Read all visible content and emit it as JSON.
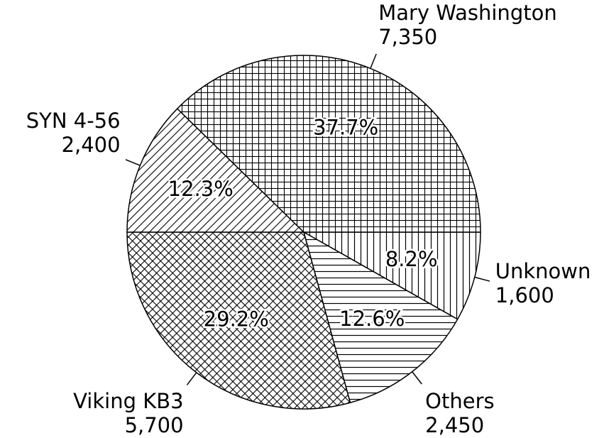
{
  "chart_data": {
    "type": "pie",
    "categories": [
      "Unknown",
      "Others",
      "Viking KB3",
      "SYN 4-56",
      "Mary Washington"
    ],
    "values": [
      1600,
      2450,
      5700,
      2400,
      7350
    ],
    "value_labels": [
      "1,600",
      "2,450",
      "5,700",
      "2,400",
      "7,350"
    ],
    "percent_labels": [
      "8.2%",
      "12.6%",
      "29.2%",
      "12.3%",
      "37.7%"
    ],
    "patterns": [
      "vertical",
      "horizontal",
      "crosshatch",
      "diagonal",
      "grid"
    ],
    "color": "#000000"
  }
}
